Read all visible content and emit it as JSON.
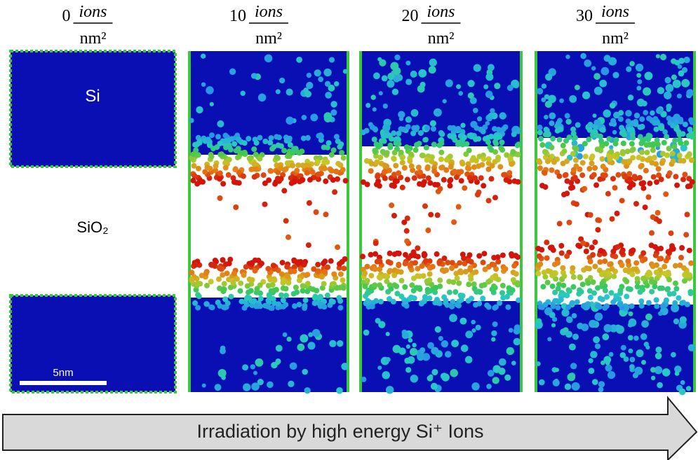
{
  "panels": [
    {
      "dose": "0",
      "unit_numerator": "ions",
      "unit_denominator": "nm²"
    },
    {
      "dose": "10",
      "unit_numerator": "ions",
      "unit_denominator": "nm²"
    },
    {
      "dose": "20",
      "unit_numerator": "ions",
      "unit_denominator": "nm²"
    },
    {
      "dose": "30",
      "unit_numerator": "ions",
      "unit_denominator": "nm²"
    }
  ],
  "labels": {
    "top_layer": "Si",
    "middle_layer": "SiO₂",
    "scale_bar": "5nm"
  },
  "arrow": {
    "text": "Irradiation by high energy Si⁺ Ions"
  }
}
